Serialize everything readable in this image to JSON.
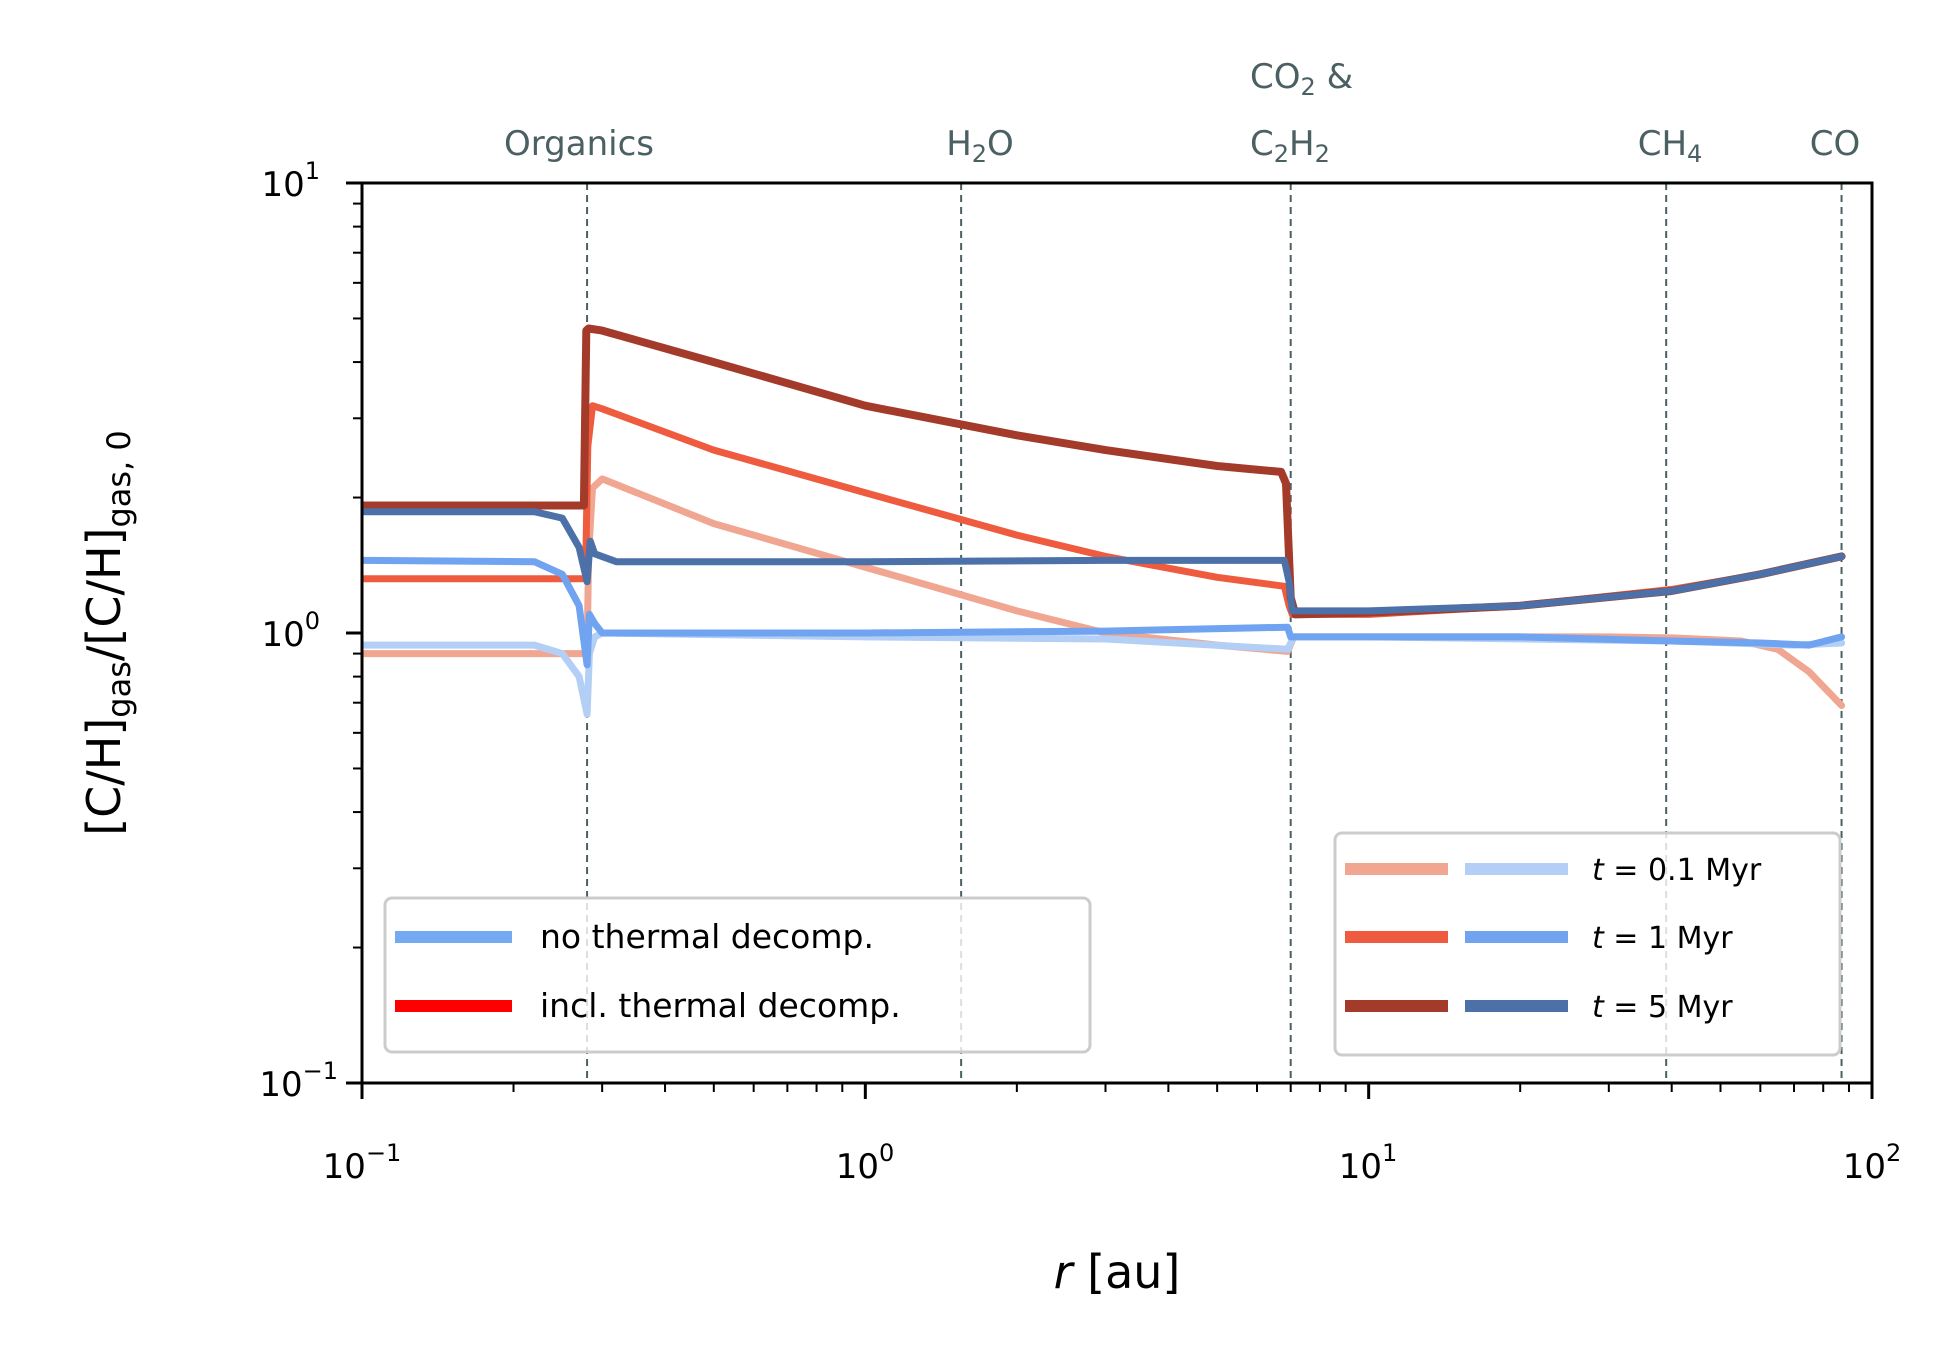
{
  "chart_data": {
    "type": "line",
    "xscale": "log",
    "yscale": "log",
    "xlim": [
      0.1,
      100
    ],
    "ylim": [
      0.1,
      10
    ],
    "xlabel": {
      "var": "r",
      "unit": "[au]"
    },
    "ylabel": {
      "text": "[C/H]gas/[C/H]gas,0",
      "part1": "[C/H]",
      "sub1": "gas",
      "part2": "/[C/H]",
      "sub2": "gas, 0"
    },
    "x_ticks": [
      {
        "base": "10",
        "exp": "−1",
        "value": 0.1
      },
      {
        "base": "10",
        "exp": "0",
        "value": 1
      },
      {
        "base": "10",
        "exp": "1",
        "value": 10
      },
      {
        "base": "10",
        "exp": "2",
        "value": 100
      }
    ],
    "y_ticks": [
      {
        "base": "10",
        "exp": "−1",
        "value": 0.1
      },
      {
        "base": "10",
        "exp": "0",
        "value": 1
      },
      {
        "base": "10",
        "exp": "1",
        "value": 10
      }
    ],
    "snowlines": [
      {
        "label": "Organics",
        "r": 0.28
      },
      {
        "label": "H2O",
        "line1": "H",
        "sub1": "2",
        "line2": "O",
        "r": 1.55
      },
      {
        "label": "CO2 & C2H2",
        "top_a": "CO",
        "top_sub": "2",
        "top_b": " &",
        "bot_a": "C",
        "bot_sub1": "2",
        "bot_b": "H",
        "bot_sub2": "2",
        "r": 7.0
      },
      {
        "label": "CH4",
        "a": "CH",
        "sub": "4",
        "r": 39
      },
      {
        "label": "CO",
        "r": 87
      }
    ],
    "legend_models": [
      {
        "label": "no thermal decomp.",
        "color": "#74a9f4"
      },
      {
        "label": "incl. thermal decomp.",
        "color": "#ff0000"
      }
    ],
    "legend_times": [
      {
        "label_var": "t",
        "label_rest": " = 0.1 Myr",
        "red": "#f0a691",
        "blue": "#b3cff5"
      },
      {
        "label_var": "t",
        "label_rest": " = 1 Myr",
        "red": "#ee5b3e",
        "blue": "#70a3f0"
      },
      {
        "label_var": "t",
        "label_rest": " = 5 Myr",
        "red": "#a43b2a",
        "blue": "#4c70a8"
      }
    ],
    "series": [
      {
        "name": "incl. thermal decomp., t = 0.1 Myr",
        "color": "#f0a691",
        "width": 7,
        "points": [
          [
            0.1,
            0.9
          ],
          [
            0.27,
            0.9
          ],
          [
            0.28,
            0.9
          ],
          [
            0.282,
            1.5
          ],
          [
            0.287,
            2.1
          ],
          [
            0.3,
            2.2
          ],
          [
            0.5,
            1.75
          ],
          [
            1,
            1.4
          ],
          [
            2,
            1.12
          ],
          [
            3,
            1.0
          ],
          [
            5,
            0.94
          ],
          [
            6.9,
            0.91
          ],
          [
            7.1,
            0.98
          ],
          [
            10,
            0.98
          ],
          [
            20,
            0.98
          ],
          [
            30,
            0.98
          ],
          [
            40,
            0.975
          ],
          [
            55,
            0.96
          ],
          [
            65,
            0.92
          ],
          [
            75,
            0.82
          ],
          [
            87,
            0.69
          ]
        ]
      },
      {
        "name": "no thermal decomp., t = 0.1 Myr",
        "color": "#b3cff5",
        "width": 7,
        "points": [
          [
            0.1,
            0.94
          ],
          [
            0.22,
            0.94
          ],
          [
            0.25,
            0.9
          ],
          [
            0.27,
            0.8
          ],
          [
            0.28,
            0.66
          ],
          [
            0.283,
            0.9
          ],
          [
            0.29,
            0.98
          ],
          [
            0.3,
            1.0
          ],
          [
            1,
            0.98
          ],
          [
            3,
            0.97
          ],
          [
            6.9,
            0.92
          ],
          [
            7.1,
            0.98
          ],
          [
            10,
            0.98
          ],
          [
            40,
            0.96
          ],
          [
            70,
            0.94
          ],
          [
            87,
            0.95
          ]
        ]
      },
      {
        "name": "incl. thermal decomp., t = 1 Myr",
        "color": "#ee5b3e",
        "width": 7,
        "points": [
          [
            0.1,
            1.32
          ],
          [
            0.278,
            1.32
          ],
          [
            0.281,
            2.6
          ],
          [
            0.287,
            3.2
          ],
          [
            0.3,
            3.15
          ],
          [
            0.5,
            2.55
          ],
          [
            1,
            2.05
          ],
          [
            2,
            1.65
          ],
          [
            3,
            1.48
          ],
          [
            5,
            1.33
          ],
          [
            6.8,
            1.27
          ],
          [
            6.95,
            1.15
          ],
          [
            7.05,
            1.1
          ],
          [
            10,
            1.1
          ],
          [
            20,
            1.15
          ],
          [
            40,
            1.25
          ],
          [
            60,
            1.35
          ],
          [
            87,
            1.48
          ]
        ]
      },
      {
        "name": "no thermal decomp., t = 1 Myr",
        "color": "#70a3f0",
        "width": 7,
        "points": [
          [
            0.1,
            1.45
          ],
          [
            0.22,
            1.44
          ],
          [
            0.25,
            1.35
          ],
          [
            0.27,
            1.15
          ],
          [
            0.28,
            0.85
          ],
          [
            0.283,
            1.1
          ],
          [
            0.29,
            1.05
          ],
          [
            0.3,
            1.0
          ],
          [
            1,
            1.0
          ],
          [
            3,
            1.01
          ],
          [
            6.9,
            1.03
          ],
          [
            7.0,
            0.98
          ],
          [
            10,
            0.98
          ],
          [
            20,
            0.98
          ],
          [
            40,
            0.96
          ],
          [
            60,
            0.95
          ],
          [
            75,
            0.94
          ],
          [
            87,
            0.98
          ]
        ]
      },
      {
        "name": "incl. thermal decomp., t = 5 Myr",
        "color": "#a43b2a",
        "width": 8,
        "points": [
          [
            0.1,
            1.92
          ],
          [
            0.276,
            1.92
          ],
          [
            0.279,
            4.7
          ],
          [
            0.282,
            4.75
          ],
          [
            0.3,
            4.7
          ],
          [
            0.5,
            4.0
          ],
          [
            1,
            3.2
          ],
          [
            2,
            2.75
          ],
          [
            3,
            2.55
          ],
          [
            5,
            2.35
          ],
          [
            6.7,
            2.28
          ],
          [
            6.85,
            2.15
          ],
          [
            7.0,
            1.2
          ],
          [
            7.15,
            1.1
          ],
          [
            10,
            1.11
          ],
          [
            20,
            1.15
          ],
          [
            40,
            1.24
          ],
          [
            60,
            1.35
          ],
          [
            87,
            1.48
          ]
        ]
      },
      {
        "name": "no thermal decomp., t = 5 Myr",
        "color": "#4c70a8",
        "width": 7,
        "points": [
          [
            0.1,
            1.86
          ],
          [
            0.22,
            1.86
          ],
          [
            0.25,
            1.8
          ],
          [
            0.27,
            1.55
          ],
          [
            0.28,
            1.3
          ],
          [
            0.284,
            1.6
          ],
          [
            0.29,
            1.5
          ],
          [
            0.32,
            1.44
          ],
          [
            1,
            1.44
          ],
          [
            3,
            1.45
          ],
          [
            6.8,
            1.45
          ],
          [
            6.95,
            1.3
          ],
          [
            7.05,
            1.12
          ],
          [
            10,
            1.12
          ],
          [
            20,
            1.15
          ],
          [
            40,
            1.24
          ],
          [
            60,
            1.35
          ],
          [
            87,
            1.48
          ]
        ]
      }
    ],
    "grid": false,
    "legend_placement": [
      "lower-left",
      "lower-right"
    ]
  }
}
